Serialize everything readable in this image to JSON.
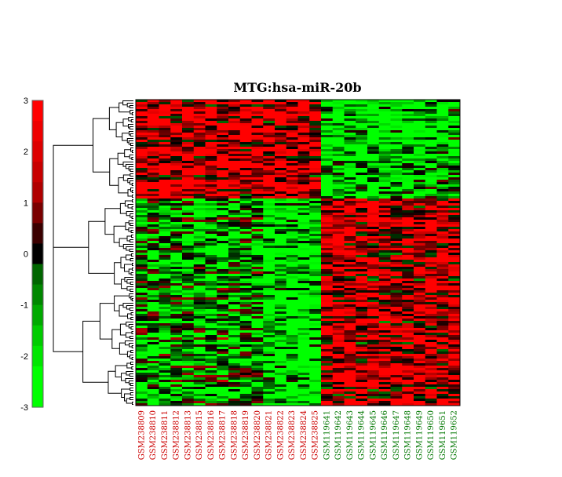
{
  "chart_data": {
    "type": "heatmap",
    "title": "MTG:hsa-miR-20b",
    "colorbar": {
      "ticks": [
        "3",
        "2",
        "1",
        "0",
        "-1",
        "-2",
        "-3"
      ],
      "range": [
        -3,
        3
      ],
      "colors": {
        "low": "#00ff00",
        "mid": "#000000",
        "high": "#ff0000"
      }
    },
    "columns": [
      {
        "name": "GSM238809",
        "group_color": "#cc0000"
      },
      {
        "name": "GSM238810",
        "group_color": "#cc0000"
      },
      {
        "name": "GSM238811",
        "group_color": "#cc0000"
      },
      {
        "name": "GSM238812",
        "group_color": "#cc0000"
      },
      {
        "name": "GSM238813",
        "group_color": "#cc0000"
      },
      {
        "name": "GSM238815",
        "group_color": "#cc0000"
      },
      {
        "name": "GSM238816",
        "group_color": "#cc0000"
      },
      {
        "name": "GSM238817",
        "group_color": "#cc0000"
      },
      {
        "name": "GSM238818",
        "group_color": "#cc0000"
      },
      {
        "name": "GSM238819",
        "group_color": "#cc0000"
      },
      {
        "name": "GSM238820",
        "group_color": "#cc0000"
      },
      {
        "name": "GSM238821",
        "group_color": "#cc0000"
      },
      {
        "name": "GSM238822",
        "group_color": "#cc0000"
      },
      {
        "name": "GSM238823",
        "group_color": "#cc0000"
      },
      {
        "name": "GSM238824",
        "group_color": "#cc0000"
      },
      {
        "name": "GSM238825",
        "group_color": "#cc0000"
      },
      {
        "name": "GSM119641",
        "group_color": "#007700"
      },
      {
        "name": "GSM119642",
        "group_color": "#007700"
      },
      {
        "name": "GSM119643",
        "group_color": "#007700"
      },
      {
        "name": "GSM119644",
        "group_color": "#007700"
      },
      {
        "name": "GSM119645",
        "group_color": "#007700"
      },
      {
        "name": "GSM119646",
        "group_color": "#007700"
      },
      {
        "name": "GSM119647",
        "group_color": "#007700"
      },
      {
        "name": "GSM119648",
        "group_color": "#007700"
      },
      {
        "name": "GSM119649",
        "group_color": "#007700"
      },
      {
        "name": "GSM119650",
        "group_color": "#007700"
      },
      {
        "name": "GSM119651",
        "group_color": "#007700"
      },
      {
        "name": "GSM119652",
        "group_color": "#007700"
      }
    ],
    "row_count": 130,
    "row_dendrogram": true,
    "grid": false,
    "legend": "left"
  }
}
